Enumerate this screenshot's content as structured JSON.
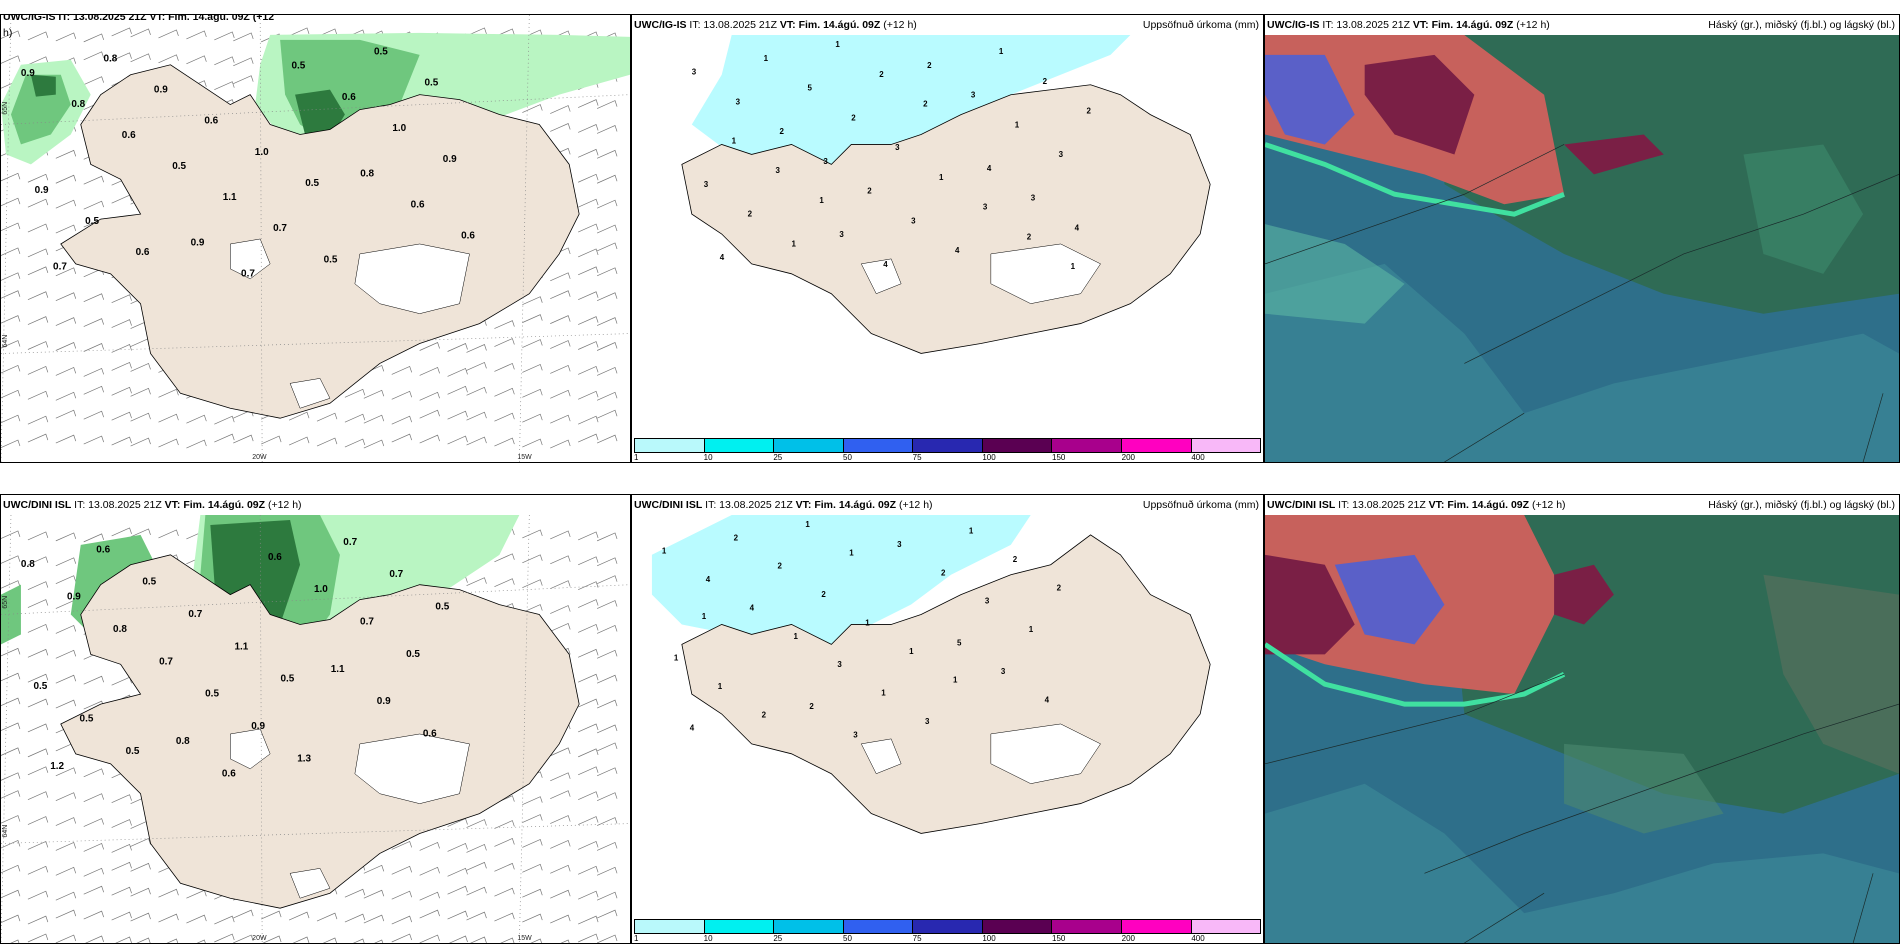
{
  "colors": {
    "land": "#efe4d8",
    "precip_light": "#b9f5c2",
    "precip_mid": "#6fc77e",
    "precip_dark": "#2d7a3e",
    "snow_cyan": "#b9fbff",
    "cloud_high": "#2f6b55",
    "cloud_mid": "#c7615c",
    "cloud_low": "#2e6f8a"
  },
  "rows": [
    {
      "model": "UWC/IG-IS",
      "it": "IT: 13.08.2025 21Z",
      "vt_label": "VT: Fim. 14.ágú. 09Z",
      "lead": "(+12 h)",
      "wind_title_cut": "UWC/IG-IS IT: 13.08.2025 21Z VT: Fim. 14.ágú. 09Z (+12",
      "wind_title_cont": "h)",
      "precip_values": [
        "0.9",
        "0.9",
        "0.8",
        "0.8",
        "0.7",
        "0.6",
        "0.6",
        "0.5",
        "0.6",
        "0.5",
        "0.6",
        "0.7",
        "1.1",
        "1.0",
        "0.8",
        "0.7",
        "0.9",
        "0.9",
        "0.5",
        "0.9",
        "0.6",
        "0.5",
        "0.5",
        "1.0",
        "0.5",
        "0.6",
        "0.5"
      ],
      "snow_values": [
        "3",
        "3",
        "4",
        "3",
        "4",
        "3",
        "2",
        "2",
        "4",
        "3",
        "3",
        "4",
        "2",
        "1",
        "1",
        "3",
        "3",
        "5",
        "4",
        "3",
        "2",
        "1",
        "2",
        "3",
        "2",
        "1",
        "1",
        "2",
        "1",
        "3",
        "1",
        "2",
        "2",
        "3",
        "2",
        "1",
        "1"
      ]
    },
    {
      "model": "UWC/DINI ISL",
      "it": "IT: 13.08.2025 21Z",
      "vt_label": "VT: Fim. 14.ágú. 09Z",
      "lead": "(+12 h)",
      "precip_values": [
        "0.8",
        "0.8",
        "1.1",
        "0.9",
        "0.6",
        "0.9",
        "0.8",
        "0.6",
        "0.6",
        "0.7",
        "1.0",
        "1.2",
        "0.5",
        "0.7",
        "0.6",
        "0.9",
        "0.5",
        "0.5",
        "1.3",
        "0.5",
        "0.7",
        "0.7",
        "0.5",
        "1.1",
        "0.7",
        "0.5",
        "0.5",
        "0.5"
      ],
      "snow_values": [
        "1",
        "2",
        "5",
        "4",
        "3",
        "3",
        "4",
        "3",
        "4",
        "1",
        "2",
        "4",
        "3",
        "3",
        "2",
        "1",
        "1",
        "2",
        "3",
        "1",
        "2",
        "1",
        "1",
        "1",
        "2",
        "2",
        "1",
        "2",
        "1",
        "1",
        "1",
        "1"
      ]
    }
  ],
  "precip_title": "Uppsöfnuð úrkoma (mm)",
  "cloud_title": "Háský (gr.), miðský (fj.bl.) og lágský (bl.)",
  "colorbar": {
    "colors": [
      "#b9f9fb",
      "#00f0f0",
      "#00c0e8",
      "#3060f0",
      "#2828b0",
      "#5a0052",
      "#a8008c",
      "#ff00c0",
      "#f8b8f8"
    ],
    "labels": [
      "1",
      "10",
      "25",
      "50",
      "75",
      "100",
      "150",
      "200",
      "400"
    ]
  },
  "axis_labels": {
    "lon_20": "20W",
    "lon_15": "15W",
    "lat_65": "65N",
    "lat_64": "64N",
    "lat_63": "63N",
    "lat_66": "66N"
  }
}
